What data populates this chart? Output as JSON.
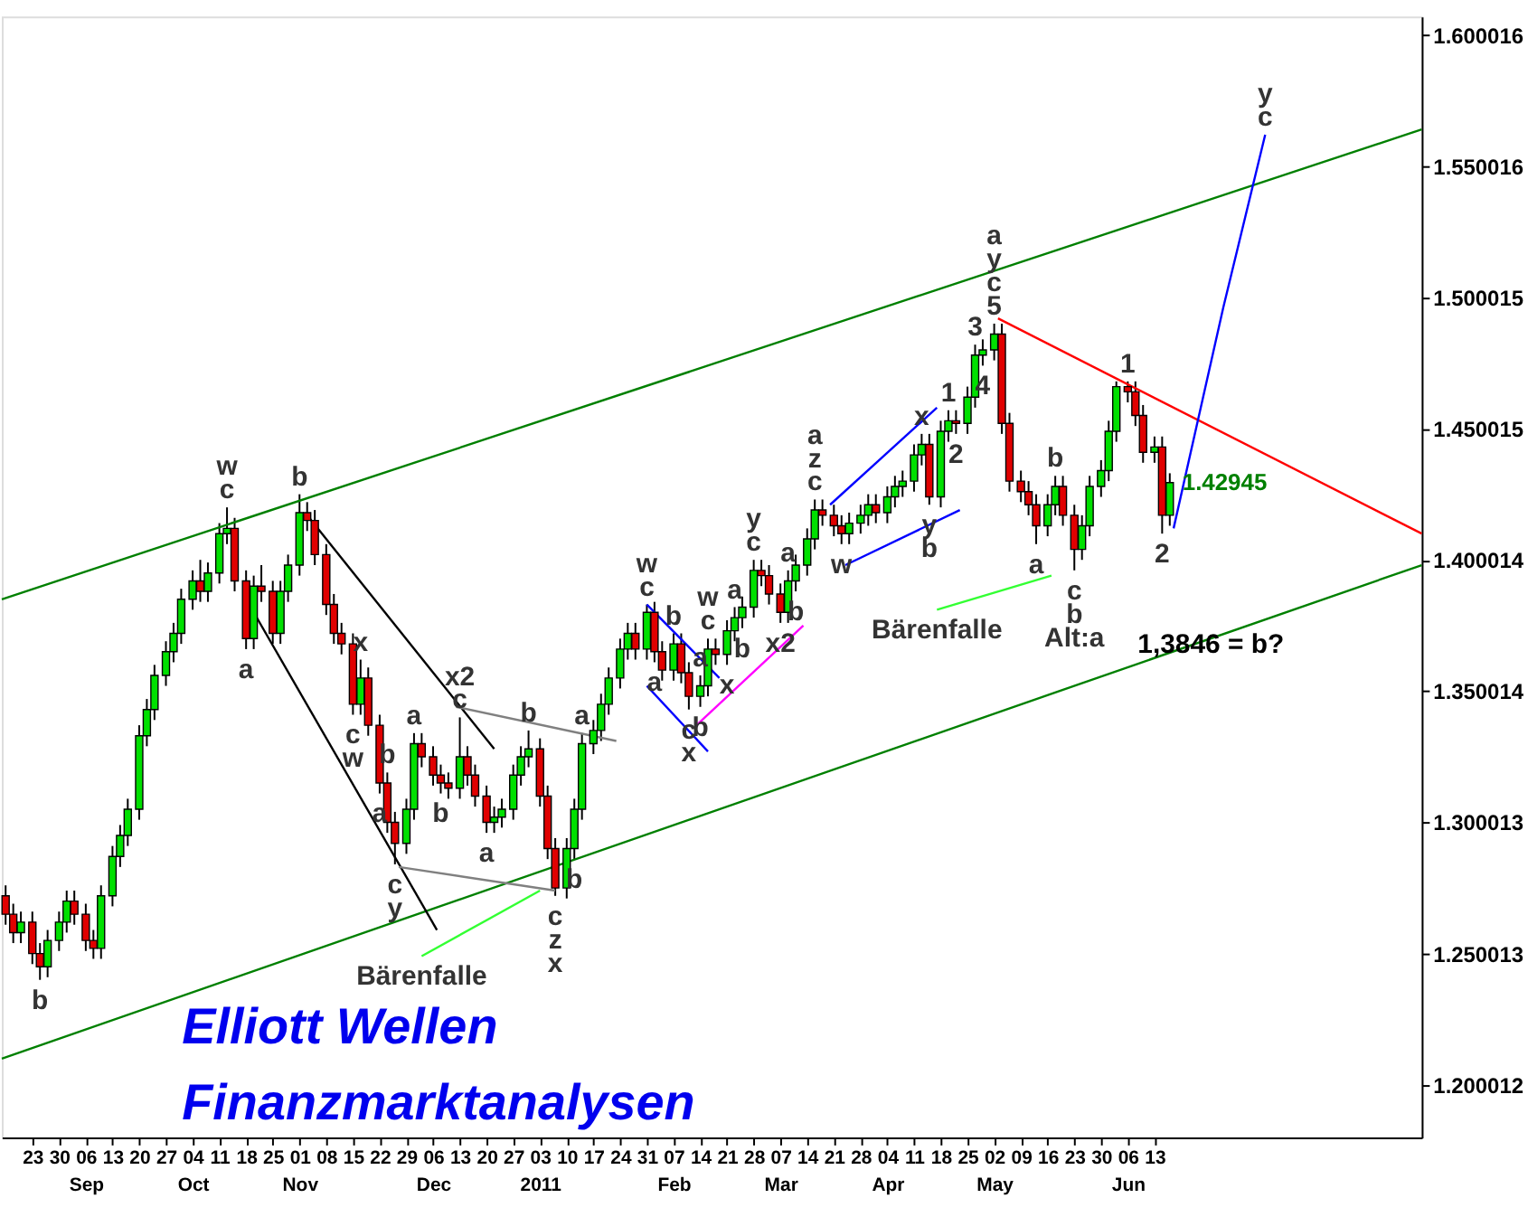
{
  "chart_data": {
    "type": "candlestick",
    "xlim": [
      "2010-08-15",
      "2011-08-22"
    ],
    "ylim": [
      1.18,
      1.607
    ],
    "yticks": [
      1.200012,
      1.250013,
      1.300013,
      1.350014,
      1.400014,
      1.450015,
      1.500015,
      1.550016,
      1.600016
    ],
    "xticks": [
      {
        "value": "2010-08-23",
        "label": "23"
      },
      {
        "value": "2010-08-30",
        "label": "30"
      },
      {
        "value": "2010-09-06",
        "label": "06\nSep"
      },
      {
        "value": "2010-09-13",
        "label": "13"
      },
      {
        "value": "2010-09-20",
        "label": "20"
      },
      {
        "value": "2010-09-27",
        "label": "27"
      },
      {
        "value": "2010-10-04",
        "label": "04\nOct"
      },
      {
        "value": "2010-10-11",
        "label": "11"
      },
      {
        "value": "2010-10-18",
        "label": "18"
      },
      {
        "value": "2010-10-25",
        "label": "25"
      },
      {
        "value": "2010-11-01",
        "label": "01\nNov"
      },
      {
        "value": "2010-11-08",
        "label": "08"
      },
      {
        "value": "2010-11-15",
        "label": "15"
      },
      {
        "value": "2010-11-22",
        "label": "22"
      },
      {
        "value": "2010-11-29",
        "label": "29"
      },
      {
        "value": "2010-12-06",
        "label": "06\nDec"
      },
      {
        "value": "2010-12-13",
        "label": "13"
      },
      {
        "value": "2010-12-20",
        "label": "20"
      },
      {
        "value": "2010-12-27",
        "label": "27"
      },
      {
        "value": "2011-01-03",
        "label": "03\n2011"
      },
      {
        "value": "2011-01-10",
        "label": "10"
      },
      {
        "value": "2011-01-17",
        "label": "17"
      },
      {
        "value": "2011-01-24",
        "label": "24"
      },
      {
        "value": "2011-01-31",
        "label": "31"
      },
      {
        "value": "2011-02-07",
        "label": "07\nFeb"
      },
      {
        "value": "2011-02-14",
        "label": "14"
      },
      {
        "value": "2011-02-21",
        "label": "21"
      },
      {
        "value": "2011-02-28",
        "label": "28"
      },
      {
        "value": "2011-03-07",
        "label": "07\nMar"
      },
      {
        "value": "2011-03-14",
        "label": "14"
      },
      {
        "value": "2011-03-21",
        "label": "21"
      },
      {
        "value": "2011-03-28",
        "label": "28"
      },
      {
        "value": "2011-04-04",
        "label": "04\nApr"
      },
      {
        "value": "2011-04-11",
        "label": "11"
      },
      {
        "value": "2011-04-18",
        "label": "18"
      },
      {
        "value": "2011-04-25",
        "label": "25"
      },
      {
        "value": "2011-05-02",
        "label": "02\nMay"
      },
      {
        "value": "2011-05-09",
        "label": "09"
      },
      {
        "value": "2011-05-16",
        "label": "16"
      },
      {
        "value": "2011-05-23",
        "label": "23"
      },
      {
        "value": "2011-05-30",
        "label": "30"
      },
      {
        "value": "2011-06-06",
        "label": "06\nJun"
      },
      {
        "value": "2011-06-13",
        "label": "13"
      }
    ],
    "series": [
      {
        "type": "candlestick",
        "x": [
          "2010-08-16",
          "2010-08-18",
          "2010-08-20",
          "2010-08-23",
          "2010-08-25",
          "2010-08-27",
          "2010-08-30",
          "2010-09-01",
          "2010-09-03",
          "2010-09-06",
          "2010-09-08",
          "2010-09-10",
          "2010-09-13",
          "2010-09-15",
          "2010-09-17",
          "2010-09-20",
          "2010-09-22",
          "2010-09-24",
          "2010-09-27",
          "2010-09-29",
          "2010-10-01",
          "2010-10-04",
          "2010-10-06",
          "2010-10-08",
          "2010-10-11",
          "2010-10-13",
          "2010-10-15",
          "2010-10-18",
          "2010-10-20",
          "2010-10-22",
          "2010-10-25",
          "2010-10-27",
          "2010-10-29",
          "2010-11-01",
          "2010-11-03",
          "2010-11-05",
          "2010-11-08",
          "2010-11-10",
          "2010-11-12",
          "2010-11-15",
          "2010-11-17",
          "2010-11-19",
          "2010-11-22",
          "2010-11-24",
          "2010-11-26",
          "2010-11-29",
          "2010-12-01",
          "2010-12-03",
          "2010-12-06",
          "2010-12-08",
          "2010-12-10",
          "2010-12-13",
          "2010-12-15",
          "2010-12-17",
          "2010-12-20",
          "2010-12-22",
          "2010-12-24",
          "2010-12-27",
          "2010-12-29",
          "2010-12-31",
          "2011-01-03",
          "2011-01-05",
          "2011-01-07",
          "2011-01-10",
          "2011-01-12",
          "2011-01-14",
          "2011-01-17",
          "2011-01-19",
          "2011-01-21",
          "2011-01-24",
          "2011-01-26",
          "2011-01-28",
          "2011-01-31",
          "2011-02-02",
          "2011-02-04",
          "2011-02-07",
          "2011-02-09",
          "2011-02-11",
          "2011-02-14",
          "2011-02-16",
          "2011-02-18",
          "2011-02-21",
          "2011-02-23",
          "2011-02-25",
          "2011-02-28",
          "2011-03-02",
          "2011-03-04",
          "2011-03-07",
          "2011-03-09",
          "2011-03-11",
          "2011-03-14",
          "2011-03-16",
          "2011-03-18",
          "2011-03-21",
          "2011-03-23",
          "2011-03-25",
          "2011-03-28",
          "2011-03-30",
          "2011-04-01",
          "2011-04-04",
          "2011-04-06",
          "2011-04-08",
          "2011-04-11",
          "2011-04-13",
          "2011-04-15",
          "2011-04-18",
          "2011-04-20",
          "2011-04-22",
          "2011-04-25",
          "2011-04-27",
          "2011-04-29",
          "2011-05-02",
          "2011-05-04",
          "2011-05-06",
          "2011-05-09",
          "2011-05-11",
          "2011-05-13",
          "2011-05-16",
          "2011-05-18",
          "2011-05-20",
          "2011-05-23",
          "2011-05-25",
          "2011-05-27",
          "2011-05-30",
          "2011-06-01",
          "2011-06-03",
          "2011-06-06",
          "2011-06-08",
          "2011-06-10",
          "2011-06-13",
          "2011-06-15",
          "2011-06-17"
        ],
        "ohlc": [
          [
            1.272,
            1.276,
            1.261,
            1.265
          ],
          [
            1.265,
            1.269,
            1.254,
            1.258
          ],
          [
            1.258,
            1.266,
            1.254,
            1.262
          ],
          [
            1.262,
            1.266,
            1.246,
            1.25
          ],
          [
            1.25,
            1.254,
            1.24,
            1.245
          ],
          [
            1.245,
            1.259,
            1.241,
            1.255
          ],
          [
            1.255,
            1.266,
            1.251,
            1.262
          ],
          [
            1.262,
            1.274,
            1.258,
            1.27
          ],
          [
            1.27,
            1.274,
            1.261,
            1.265
          ],
          [
            1.265,
            1.269,
            1.251,
            1.255
          ],
          [
            1.255,
            1.259,
            1.248,
            1.252
          ],
          [
            1.252,
            1.276,
            1.248,
            1.272
          ],
          [
            1.272,
            1.291,
            1.268,
            1.287
          ],
          [
            1.287,
            1.299,
            1.283,
            1.295
          ],
          [
            1.295,
            1.309,
            1.291,
            1.305
          ],
          [
            1.305,
            1.337,
            1.301,
            1.333
          ],
          [
            1.333,
            1.347,
            1.329,
            1.343
          ],
          [
            1.343,
            1.36,
            1.339,
            1.356
          ],
          [
            1.356,
            1.369,
            1.352,
            1.365
          ],
          [
            1.365,
            1.376,
            1.361,
            1.372
          ],
          [
            1.372,
            1.389,
            1.368,
            1.385
          ],
          [
            1.385,
            1.396,
            1.381,
            1.392
          ],
          [
            1.392,
            1.4,
            1.384,
            1.388
          ],
          [
            1.388,
            1.399,
            1.384,
            1.395
          ],
          [
            1.395,
            1.414,
            1.391,
            1.41
          ],
          [
            1.41,
            1.42,
            1.406,
            1.412
          ],
          [
            1.412,
            1.416,
            1.388,
            1.392
          ],
          [
            1.392,
            1.396,
            1.366,
            1.37
          ],
          [
            1.37,
            1.394,
            1.366,
            1.39
          ],
          [
            1.39,
            1.398,
            1.384,
            1.388
          ],
          [
            1.388,
            1.392,
            1.368,
            1.372
          ],
          [
            1.372,
            1.392,
            1.368,
            1.388
          ],
          [
            1.388,
            1.402,
            1.384,
            1.398
          ],
          [
            1.398,
            1.425,
            1.394,
            1.418
          ],
          [
            1.418,
            1.422,
            1.411,
            1.415
          ],
          [
            1.415,
            1.419,
            1.398,
            1.402
          ],
          [
            1.402,
            1.406,
            1.379,
            1.383
          ],
          [
            1.383,
            1.387,
            1.368,
            1.372
          ],
          [
            1.372,
            1.376,
            1.364,
            1.368
          ],
          [
            1.368,
            1.372,
            1.341,
            1.345
          ],
          [
            1.345,
            1.362,
            1.341,
            1.355
          ],
          [
            1.355,
            1.359,
            1.333,
            1.337
          ],
          [
            1.337,
            1.341,
            1.311,
            1.315
          ],
          [
            1.315,
            1.319,
            1.296,
            1.3
          ],
          [
            1.3,
            1.304,
            1.284,
            1.292
          ],
          [
            1.292,
            1.309,
            1.288,
            1.305
          ],
          [
            1.305,
            1.334,
            1.301,
            1.33
          ],
          [
            1.33,
            1.334,
            1.321,
            1.325
          ],
          [
            1.325,
            1.329,
            1.314,
            1.318
          ],
          [
            1.318,
            1.322,
            1.311,
            1.315
          ],
          [
            1.315,
            1.319,
            1.309,
            1.313
          ],
          [
            1.313,
            1.34,
            1.309,
            1.325
          ],
          [
            1.325,
            1.329,
            1.314,
            1.318
          ],
          [
            1.318,
            1.322,
            1.306,
            1.31
          ],
          [
            1.31,
            1.314,
            1.296,
            1.3
          ],
          [
            1.3,
            1.306,
            1.296,
            1.302
          ],
          [
            1.302,
            1.309,
            1.298,
            1.305
          ],
          [
            1.305,
            1.322,
            1.301,
            1.318
          ],
          [
            1.318,
            1.329,
            1.314,
            1.325
          ],
          [
            1.325,
            1.335,
            1.321,
            1.328
          ],
          [
            1.328,
            1.332,
            1.306,
            1.31
          ],
          [
            1.31,
            1.314,
            1.286,
            1.29
          ],
          [
            1.29,
            1.294,
            1.272,
            1.275
          ],
          [
            1.275,
            1.294,
            1.271,
            1.29
          ],
          [
            1.29,
            1.309,
            1.286,
            1.305
          ],
          [
            1.305,
            1.334,
            1.301,
            1.33
          ],
          [
            1.33,
            1.339,
            1.326,
            1.335
          ],
          [
            1.335,
            1.349,
            1.331,
            1.345
          ],
          [
            1.345,
            1.359,
            1.341,
            1.355
          ],
          [
            1.355,
            1.37,
            1.351,
            1.366
          ],
          [
            1.366,
            1.376,
            1.362,
            1.372
          ],
          [
            1.372,
            1.376,
            1.362,
            1.366
          ],
          [
            1.366,
            1.383,
            1.362,
            1.38
          ],
          [
            1.38,
            1.384,
            1.361,
            1.365
          ],
          [
            1.365,
            1.369,
            1.354,
            1.358
          ],
          [
            1.358,
            1.372,
            1.354,
            1.368
          ],
          [
            1.368,
            1.372,
            1.353,
            1.357
          ],
          [
            1.357,
            1.361,
            1.343,
            1.348
          ],
          [
            1.348,
            1.356,
            1.344,
            1.352
          ],
          [
            1.352,
            1.37,
            1.348,
            1.366
          ],
          [
            1.366,
            1.37,
            1.36,
            1.364
          ],
          [
            1.364,
            1.377,
            1.36,
            1.373
          ],
          [
            1.373,
            1.382,
            1.369,
            1.378
          ],
          [
            1.378,
            1.386,
            1.374,
            1.382
          ],
          [
            1.382,
            1.4,
            1.378,
            1.396
          ],
          [
            1.396,
            1.4,
            1.39,
            1.394
          ],
          [
            1.394,
            1.398,
            1.383,
            1.387
          ],
          [
            1.387,
            1.391,
            1.376,
            1.38
          ],
          [
            1.38,
            1.396,
            1.376,
            1.392
          ],
          [
            1.392,
            1.402,
            1.388,
            1.398
          ],
          [
            1.398,
            1.412,
            1.394,
            1.408
          ],
          [
            1.408,
            1.423,
            1.404,
            1.419
          ],
          [
            1.419,
            1.423,
            1.413,
            1.417
          ],
          [
            1.417,
            1.421,
            1.409,
            1.413
          ],
          [
            1.413,
            1.417,
            1.406,
            1.41
          ],
          [
            1.41,
            1.418,
            1.406,
            1.414
          ],
          [
            1.414,
            1.421,
            1.41,
            1.417
          ],
          [
            1.417,
            1.425,
            1.413,
            1.421
          ],
          [
            1.421,
            1.425,
            1.414,
            1.418
          ],
          [
            1.418,
            1.428,
            1.414,
            1.424
          ],
          [
            1.424,
            1.432,
            1.42,
            1.428
          ],
          [
            1.428,
            1.434,
            1.424,
            1.43
          ],
          [
            1.43,
            1.444,
            1.426,
            1.44
          ],
          [
            1.44,
            1.448,
            1.436,
            1.444
          ],
          [
            1.444,
            1.448,
            1.421,
            1.424
          ],
          [
            1.424,
            1.453,
            1.42,
            1.449
          ],
          [
            1.449,
            1.457,
            1.445,
            1.453
          ],
          [
            1.453,
            1.457,
            1.448,
            1.452
          ],
          [
            1.452,
            1.466,
            1.448,
            1.462
          ],
          [
            1.462,
            1.482,
            1.458,
            1.478
          ],
          [
            1.478,
            1.484,
            1.474,
            1.48
          ],
          [
            1.48,
            1.49,
            1.476,
            1.486
          ],
          [
            1.486,
            1.49,
            1.448,
            1.452
          ],
          [
            1.452,
            1.456,
            1.426,
            1.43
          ],
          [
            1.43,
            1.434,
            1.422,
            1.426
          ],
          [
            1.426,
            1.43,
            1.417,
            1.421
          ],
          [
            1.421,
            1.425,
            1.406,
            1.413
          ],
          [
            1.413,
            1.425,
            1.409,
            1.421
          ],
          [
            1.421,
            1.432,
            1.417,
            1.428
          ],
          [
            1.428,
            1.432,
            1.413,
            1.417
          ],
          [
            1.417,
            1.421,
            1.396,
            1.404
          ],
          [
            1.404,
            1.417,
            1.4,
            1.413
          ],
          [
            1.413,
            1.432,
            1.409,
            1.428
          ],
          [
            1.428,
            1.438,
            1.424,
            1.434
          ],
          [
            1.434,
            1.453,
            1.43,
            1.449
          ],
          [
            1.449,
            1.468,
            1.445,
            1.466
          ],
          [
            1.466,
            1.468,
            1.46,
            1.464
          ],
          [
            1.464,
            1.468,
            1.451,
            1.455
          ],
          [
            1.455,
            1.459,
            1.437,
            1.441
          ],
          [
            1.441,
            1.447,
            1.437,
            1.443
          ],
          [
            1.443,
            1.447,
            1.41,
            1.417
          ],
          [
            1.417,
            1.433,
            1.413,
            1.42945
          ]
        ],
        "colors": [
          "#e00000",
          "#e00000",
          "#00e000",
          "#e00000",
          "#e00000",
          "#00e000",
          "#00e000",
          "#00e000",
          "#e00000",
          "#e00000",
          "#e00000",
          "#00e000",
          "#00e000",
          "#00e000",
          "#00e000",
          "#00e000",
          "#00e000",
          "#00e000",
          "#00e000",
          "#00e000",
          "#00e000",
          "#00e000",
          "#e00000",
          "#00e000",
          "#00e000",
          "#00e000",
          "#e00000",
          "#e00000",
          "#00e000",
          "#e00000",
          "#e00000",
          "#00e000",
          "#00e000",
          "#00e000",
          "#e00000",
          "#e00000",
          "#e00000",
          "#e00000",
          "#e00000",
          "#e00000",
          "#00e000",
          "#e00000",
          "#e00000",
          "#e00000",
          "#e00000",
          "#00e000",
          "#00e000",
          "#e00000",
          "#e00000",
          "#e00000",
          "#e00000",
          "#00e000",
          "#e00000",
          "#e00000",
          "#e00000",
          "#00e000",
          "#00e000",
          "#00e000",
          "#00e000",
          "#00e000",
          "#e00000",
          "#e00000",
          "#e00000",
          "#00e000",
          "#00e000",
          "#00e000",
          "#00e000",
          "#00e000",
          "#00e000",
          "#00e000",
          "#00e000",
          "#e00000",
          "#00e000",
          "#e00000",
          "#e00000",
          "#00e000",
          "#e00000",
          "#e00000",
          "#00e000",
          "#00e000",
          "#e00000",
          "#00e000",
          "#00e000",
          "#00e000",
          "#00e000",
          "#e00000",
          "#e00000",
          "#e00000",
          "#00e000",
          "#00e000",
          "#00e000",
          "#00e000",
          "#e00000",
          "#e00000",
          "#e00000",
          "#00e000",
          "#00e000",
          "#00e000",
          "#e00000",
          "#00e000",
          "#00e000",
          "#00e000",
          "#00e000",
          "#00e000",
          "#e00000",
          "#00e000",
          "#00e000",
          "#e00000",
          "#00e000",
          "#00e000",
          "#00e000",
          "#00e000",
          "#e00000",
          "#e00000",
          "#e00000",
          "#e00000",
          "#e00000",
          "#00e000",
          "#00e000",
          "#e00000",
          "#e00000",
          "#00e000",
          "#00e000",
          "#00e000",
          "#00e000",
          "#00e000",
          "#e00000",
          "#e00000",
          "#e00000",
          "#00e000",
          "#e00000",
          "#00e000"
        ]
      },
      {
        "type": "line",
        "color": "#008000",
        "x": [
          "2010-08-15",
          "2011-08-22"
        ],
        "values": [
          1.385,
          1.564
        ]
      },
      {
        "type": "line",
        "color": "#008000",
        "x": [
          "2010-08-15",
          "2011-08-22"
        ],
        "values": [
          1.21,
          1.398
        ]
      },
      {
        "type": "line",
        "color": "#ff0000",
        "x": [
          "2011-05-03",
          "2011-08-22"
        ],
        "values": [
          1.492,
          1.41
        ]
      },
      {
        "type": "line",
        "color": "#0000ff",
        "x": [
          "2011-06-18",
          "2011-07-01",
          "2011-07-12"
        ],
        "values": [
          1.412,
          1.496,
          1.562
        ]
      },
      {
        "type": "line",
        "color": "#000000",
        "x": [
          "2010-10-20",
          "2010-12-07"
        ],
        "values": [
          1.38,
          1.259
        ]
      },
      {
        "type": "line",
        "color": "#000000",
        "x": [
          "2010-11-03",
          "2010-12-22"
        ],
        "values": [
          1.417,
          1.328
        ]
      },
      {
        "type": "line",
        "color": "#808080",
        "x": [
          "2010-12-12",
          "2011-01-23"
        ],
        "values": [
          1.344,
          1.331
        ]
      },
      {
        "type": "line",
        "color": "#808080",
        "x": [
          "2010-11-27",
          "2011-01-07"
        ],
        "values": [
          1.283,
          1.274
        ]
      },
      {
        "type": "line",
        "color": "#0000ff",
        "x": [
          "2011-01-31",
          "2011-02-19"
        ],
        "values": [
          1.383,
          1.355
        ]
      },
      {
        "type": "line",
        "color": "#0000ff",
        "x": [
          "2011-01-31",
          "2011-02-16"
        ],
        "values": [
          1.352,
          1.327
        ]
      },
      {
        "type": "line",
        "color": "#0000ff",
        "x": [
          "2011-03-20",
          "2011-04-17"
        ],
        "values": [
          1.421,
          1.458
        ]
      },
      {
        "type": "line",
        "color": "#0000ff",
        "x": [
          "2011-03-24",
          "2011-04-23"
        ],
        "values": [
          1.398,
          1.419
        ]
      },
      {
        "type": "line",
        "color": "#ff00ff",
        "x": [
          "2011-02-13",
          "2011-03-13"
        ],
        "values": [
          1.337,
          1.375
        ]
      },
      {
        "type": "line",
        "color": "#33ff33",
        "x": [
          "2010-12-03",
          "2011-01-03"
        ],
        "values": [
          1.249,
          1.274
        ]
      },
      {
        "type": "line",
        "color": "#33ff33",
        "x": [
          "2011-04-17",
          "2011-05-17"
        ],
        "values": [
          1.381,
          1.394
        ]
      }
    ],
    "annotations": [
      "Elliott Wellen",
      "Finanzmarktanalysen",
      "1,3846 = b?",
      {
        "text": "b",
        "x": "2010-08-25",
        "y": 1.24
      },
      {
        "text": "c",
        "x": "2010-10-13",
        "y": 1.42
      },
      {
        "text": "w",
        "x": "2010-10-13",
        "y": 1.42
      },
      {
        "text": "a",
        "x": "2010-10-18",
        "y": 1.366
      },
      {
        "text": "b",
        "x": "2010-11-01",
        "y": 1.425
      },
      {
        "text": "x",
        "x": "2010-11-17",
        "y": 1.362
      },
      {
        "text": "c",
        "x": "2010-11-15",
        "y": 1.341
      },
      {
        "text": "w",
        "x": "2010-11-15",
        "y": 1.341
      },
      {
        "text": "a",
        "x": "2010-11-22",
        "y": 1.311
      },
      {
        "text": "b",
        "x": "2010-11-24",
        "y": 1.319
      },
      {
        "text": "a",
        "x": "2010-12-01",
        "y": 1.334
      },
      {
        "text": "b",
        "x": "2010-12-08",
        "y": 1.311
      },
      {
        "text": "c",
        "x": "2010-11-26",
        "y": 1.284
      },
      {
        "text": "y",
        "x": "2010-11-26",
        "y": 1.284
      },
      {
        "text": "c",
        "x": "2010-12-13",
        "y": 1.34
      },
      {
        "text": "x2",
        "x": "2010-12-13",
        "y": 1.34
      },
      {
        "text": "a",
        "x": "2010-12-20",
        "y": 1.296
      },
      {
        "text": "b",
        "x": "2010-12-31",
        "y": 1.335
      },
      {
        "text": "a",
        "x": "2011-01-14",
        "y": 1.334
      },
      {
        "text": "b",
        "x": "2011-01-12",
        "y": 1.286
      },
      {
        "text": "c",
        "x": "2011-01-07",
        "y": 1.272
      },
      {
        "text": "z",
        "x": "2011-01-07",
        "y": 1.272
      },
      {
        "text": "x",
        "x": "2011-01-07",
        "y": 1.272
      },
      {
        "text": "c",
        "x": "2011-01-31",
        "y": 1.383
      },
      {
        "text": "w",
        "x": "2011-01-31",
        "y": 1.383
      },
      {
        "text": "b",
        "x": "2011-02-07",
        "y": 1.372
      },
      {
        "text": "a",
        "x": "2011-02-02",
        "y": 1.361
      },
      {
        "text": "c",
        "x": "2011-02-11",
        "y": 1.343
      },
      {
        "text": "x",
        "x": "2011-02-11",
        "y": 1.343
      },
      {
        "text": "b",
        "x": "2011-02-14",
        "y": 1.344
      },
      {
        "text": "a",
        "x": "2011-02-14",
        "y": 1.356
      },
      {
        "text": "c",
        "x": "2011-02-16",
        "y": 1.37
      },
      {
        "text": "w",
        "x": "2011-02-16",
        "y": 1.37
      },
      {
        "text": "x",
        "x": "2011-02-21",
        "y": 1.36
      },
      {
        "text": "a",
        "x": "2011-02-23",
        "y": 1.382
      },
      {
        "text": "b",
        "x": "2011-02-25",
        "y": 1.374
      },
      {
        "text": "c",
        "x": "2011-02-28",
        "y": 1.4
      },
      {
        "text": "y",
        "x": "2011-02-28",
        "y": 1.4
      },
      {
        "text": "x2",
        "x": "2011-03-07",
        "y": 1.376
      },
      {
        "text": "a",
        "x": "2011-03-09",
        "y": 1.396
      },
      {
        "text": "b",
        "x": "2011-03-11",
        "y": 1.388
      },
      {
        "text": "c",
        "x": "2011-03-16",
        "y": 1.423
      },
      {
        "text": "z",
        "x": "2011-03-16",
        "y": 1.423
      },
      {
        "text": "a",
        "x": "2011-03-16",
        "y": 1.423
      },
      {
        "text": "w",
        "x": "2011-03-23",
        "y": 1.406
      },
      {
        "text": "x",
        "x": "2011-04-13",
        "y": 1.448
      },
      {
        "text": "y",
        "x": "2011-04-15",
        "y": 1.421
      },
      {
        "text": "b",
        "x": "2011-04-15",
        "y": 1.421
      },
      {
        "text": "1",
        "x": "2011-04-20",
        "y": 1.457
      },
      {
        "text": "2",
        "x": "2011-04-22",
        "y": 1.448
      },
      {
        "text": "3",
        "x": "2011-04-27",
        "y": 1.482
      },
      {
        "text": "4",
        "x": "2011-04-29",
        "y": 1.474
      },
      {
        "text": "5",
        "x": "2011-05-02",
        "y": 1.49
      },
      {
        "text": "c",
        "x": "2011-05-02",
        "y": 1.49
      },
      {
        "text": "y",
        "x": "2011-05-02",
        "y": 1.49
      },
      {
        "text": "a",
        "x": "2011-05-02",
        "y": 1.49
      },
      {
        "text": "a",
        "x": "2011-05-13",
        "y": 1.406
      },
      {
        "text": "b",
        "x": "2011-05-18",
        "y": 1.432
      },
      {
        "text": "c",
        "x": "2011-05-23",
        "y": 1.396
      },
      {
        "text": "b",
        "x": "2011-05-23",
        "y": 1.396
      },
      {
        "text": "Alt:a",
        "x": "2011-05-23",
        "y": 1.396
      },
      {
        "text": "1",
        "x": "2011-06-06",
        "y": 1.468
      },
      {
        "text": "2",
        "x": "2011-06-15",
        "y": 1.41
      },
      {
        "text": "c",
        "x": "2011-07-12",
        "y": 1.562
      },
      {
        "text": "y",
        "x": "2011-07-12",
        "y": 1.562
      },
      {
        "text": "Bärenfalle",
        "x": "2010-12-03",
        "y": 1.249
      },
      {
        "text": "Bärenfalle",
        "x": "2011-04-17",
        "y": 1.381
      },
      {
        "text": "1.42945",
        "x": "2011-06-17",
        "y": 1.42945
      }
    ]
  }
}
